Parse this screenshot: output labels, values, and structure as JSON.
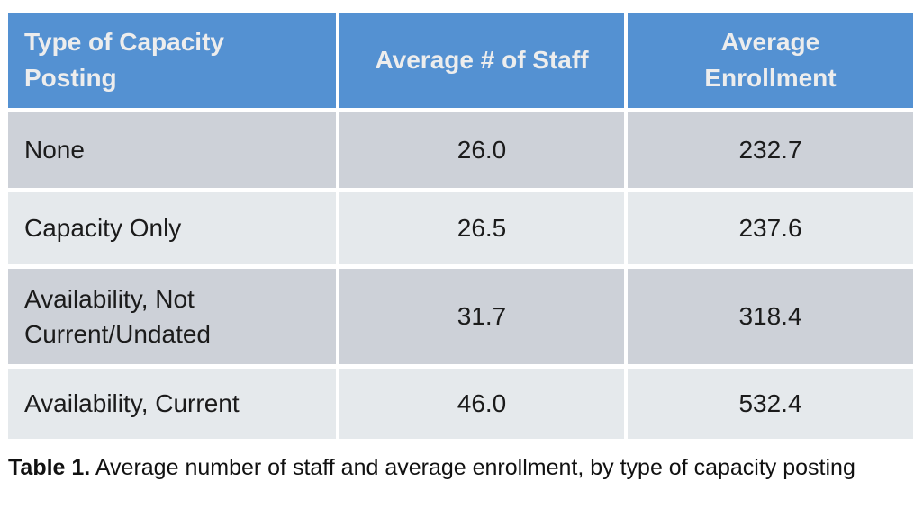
{
  "table": {
    "columns": [
      {
        "label": "Type of Capacity Posting"
      },
      {
        "label": "Average # of Staff"
      },
      {
        "label": "Average Enrollment"
      }
    ],
    "rows": [
      {
        "type": "None",
        "staff": "26.0",
        "enrollment": "232.7"
      },
      {
        "type": "Capacity Only",
        "staff": "26.5",
        "enrollment": "237.6"
      },
      {
        "type": "Availability, Not Current/Undated",
        "staff": "31.7",
        "enrollment": "318.4"
      },
      {
        "type": "Availability, Current",
        "staff": "46.0",
        "enrollment": "532.4"
      }
    ]
  },
  "caption": {
    "label": "Table 1.",
    "text": "Average number of staff and average enrollment, by type of capacity posting"
  },
  "colors": {
    "header-bg": "#5491d2",
    "header-text": "#ededed",
    "row-dark": "#cdd1d8",
    "row-light": "#e5e9ec",
    "body-text": "#1b1b1b",
    "page-bg": "#ffffff"
  }
}
